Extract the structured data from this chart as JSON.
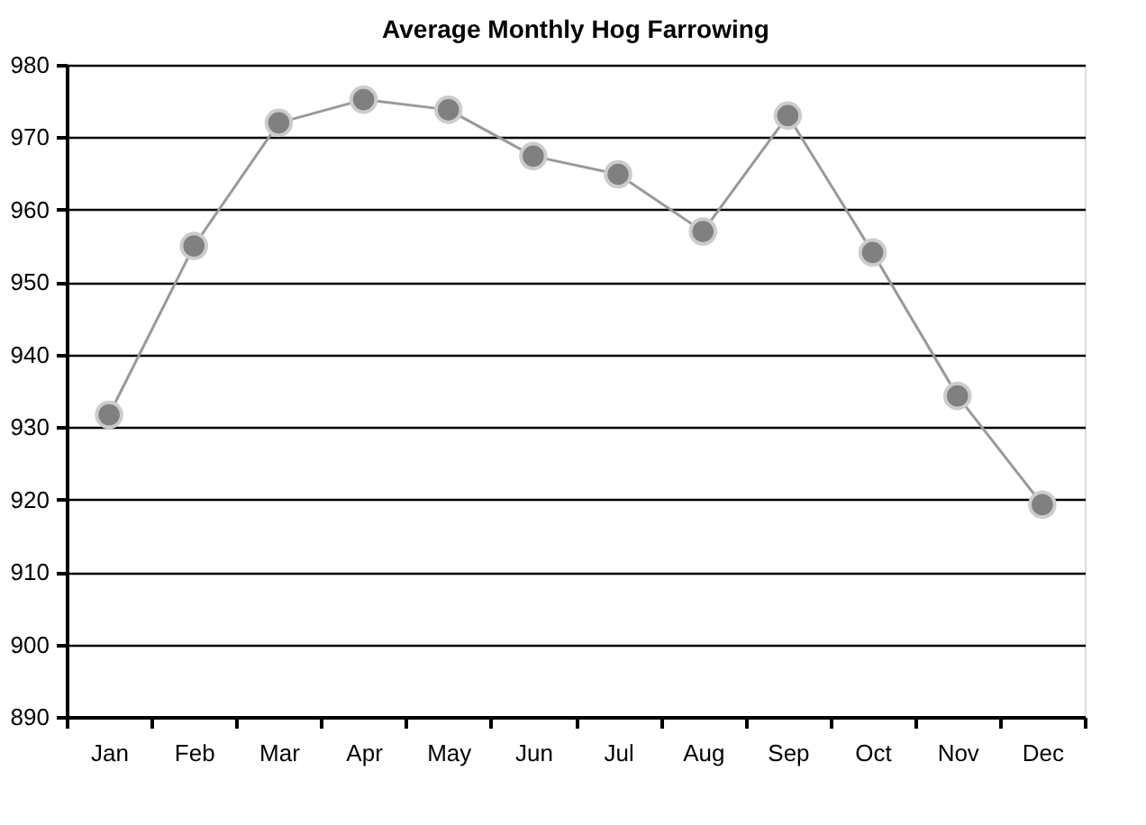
{
  "chart_data": {
    "type": "line",
    "title": "Average Monthly Hog Farrowing",
    "categories": [
      "Jan",
      "Feb",
      "Mar",
      "Apr",
      "May",
      "Jun",
      "Jul",
      "Aug",
      "Sep",
      "Oct",
      "Nov",
      "Dec"
    ],
    "series": [
      {
        "color": "#999999",
        "values": [
          931.7,
          955,
          972,
          975.2,
          973.8,
          967.4,
          964.9,
          957,
          973,
          954.1,
          934.3,
          919.3
        ]
      }
    ],
    "marker": "circle",
    "line_style": "solid",
    "ylim": [
      890,
      980
    ],
    "yticks": [
      890,
      900,
      910,
      920,
      930,
      940,
      950,
      960,
      970,
      980
    ],
    "grid": "y",
    "legend": false
  }
}
